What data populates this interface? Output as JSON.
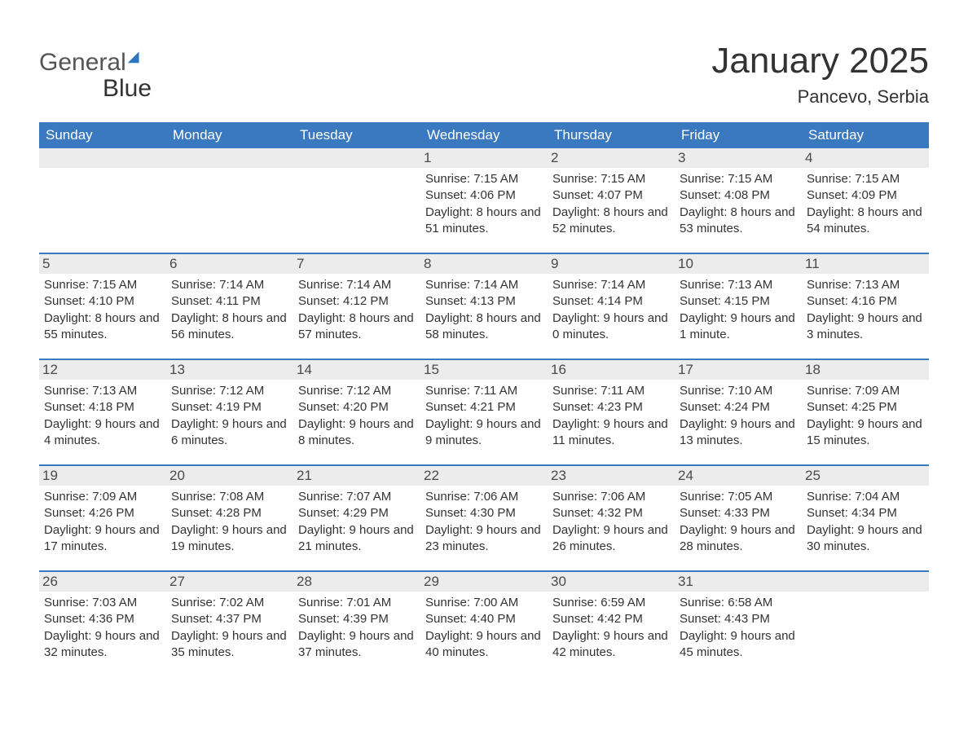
{
  "logo": {
    "part1": "General",
    "part2": "Blue"
  },
  "title": "January 2025",
  "location": "Pancevo, Serbia",
  "colors": {
    "header_bg": "#3a79bf",
    "header_text": "#ffffff",
    "daynum_bg": "#ececec",
    "border": "#3a79bf",
    "body_text": "#333333"
  },
  "dow": [
    "Sunday",
    "Monday",
    "Tuesday",
    "Wednesday",
    "Thursday",
    "Friday",
    "Saturday"
  ],
  "weeks": [
    [
      {
        "num": "",
        "sunrise": "",
        "sunset": "",
        "daylight": ""
      },
      {
        "num": "",
        "sunrise": "",
        "sunset": "",
        "daylight": ""
      },
      {
        "num": "",
        "sunrise": "",
        "sunset": "",
        "daylight": ""
      },
      {
        "num": "1",
        "sunrise": "Sunrise: 7:15 AM",
        "sunset": "Sunset: 4:06 PM",
        "daylight": "Daylight: 8 hours and 51 minutes."
      },
      {
        "num": "2",
        "sunrise": "Sunrise: 7:15 AM",
        "sunset": "Sunset: 4:07 PM",
        "daylight": "Daylight: 8 hours and 52 minutes."
      },
      {
        "num": "3",
        "sunrise": "Sunrise: 7:15 AM",
        "sunset": "Sunset: 4:08 PM",
        "daylight": "Daylight: 8 hours and 53 minutes."
      },
      {
        "num": "4",
        "sunrise": "Sunrise: 7:15 AM",
        "sunset": "Sunset: 4:09 PM",
        "daylight": "Daylight: 8 hours and 54 minutes."
      }
    ],
    [
      {
        "num": "5",
        "sunrise": "Sunrise: 7:15 AM",
        "sunset": "Sunset: 4:10 PM",
        "daylight": "Daylight: 8 hours and 55 minutes."
      },
      {
        "num": "6",
        "sunrise": "Sunrise: 7:14 AM",
        "sunset": "Sunset: 4:11 PM",
        "daylight": "Daylight: 8 hours and 56 minutes."
      },
      {
        "num": "7",
        "sunrise": "Sunrise: 7:14 AM",
        "sunset": "Sunset: 4:12 PM",
        "daylight": "Daylight: 8 hours and 57 minutes."
      },
      {
        "num": "8",
        "sunrise": "Sunrise: 7:14 AM",
        "sunset": "Sunset: 4:13 PM",
        "daylight": "Daylight: 8 hours and 58 minutes."
      },
      {
        "num": "9",
        "sunrise": "Sunrise: 7:14 AM",
        "sunset": "Sunset: 4:14 PM",
        "daylight": "Daylight: 9 hours and 0 minutes."
      },
      {
        "num": "10",
        "sunrise": "Sunrise: 7:13 AM",
        "sunset": "Sunset: 4:15 PM",
        "daylight": "Daylight: 9 hours and 1 minute."
      },
      {
        "num": "11",
        "sunrise": "Sunrise: 7:13 AM",
        "sunset": "Sunset: 4:16 PM",
        "daylight": "Daylight: 9 hours and 3 minutes."
      }
    ],
    [
      {
        "num": "12",
        "sunrise": "Sunrise: 7:13 AM",
        "sunset": "Sunset: 4:18 PM",
        "daylight": "Daylight: 9 hours and 4 minutes."
      },
      {
        "num": "13",
        "sunrise": "Sunrise: 7:12 AM",
        "sunset": "Sunset: 4:19 PM",
        "daylight": "Daylight: 9 hours and 6 minutes."
      },
      {
        "num": "14",
        "sunrise": "Sunrise: 7:12 AM",
        "sunset": "Sunset: 4:20 PM",
        "daylight": "Daylight: 9 hours and 8 minutes."
      },
      {
        "num": "15",
        "sunrise": "Sunrise: 7:11 AM",
        "sunset": "Sunset: 4:21 PM",
        "daylight": "Daylight: 9 hours and 9 minutes."
      },
      {
        "num": "16",
        "sunrise": "Sunrise: 7:11 AM",
        "sunset": "Sunset: 4:23 PM",
        "daylight": "Daylight: 9 hours and 11 minutes."
      },
      {
        "num": "17",
        "sunrise": "Sunrise: 7:10 AM",
        "sunset": "Sunset: 4:24 PM",
        "daylight": "Daylight: 9 hours and 13 minutes."
      },
      {
        "num": "18",
        "sunrise": "Sunrise: 7:09 AM",
        "sunset": "Sunset: 4:25 PM",
        "daylight": "Daylight: 9 hours and 15 minutes."
      }
    ],
    [
      {
        "num": "19",
        "sunrise": "Sunrise: 7:09 AM",
        "sunset": "Sunset: 4:26 PM",
        "daylight": "Daylight: 9 hours and 17 minutes."
      },
      {
        "num": "20",
        "sunrise": "Sunrise: 7:08 AM",
        "sunset": "Sunset: 4:28 PM",
        "daylight": "Daylight: 9 hours and 19 minutes."
      },
      {
        "num": "21",
        "sunrise": "Sunrise: 7:07 AM",
        "sunset": "Sunset: 4:29 PM",
        "daylight": "Daylight: 9 hours and 21 minutes."
      },
      {
        "num": "22",
        "sunrise": "Sunrise: 7:06 AM",
        "sunset": "Sunset: 4:30 PM",
        "daylight": "Daylight: 9 hours and 23 minutes."
      },
      {
        "num": "23",
        "sunrise": "Sunrise: 7:06 AM",
        "sunset": "Sunset: 4:32 PM",
        "daylight": "Daylight: 9 hours and 26 minutes."
      },
      {
        "num": "24",
        "sunrise": "Sunrise: 7:05 AM",
        "sunset": "Sunset: 4:33 PM",
        "daylight": "Daylight: 9 hours and 28 minutes."
      },
      {
        "num": "25",
        "sunrise": "Sunrise: 7:04 AM",
        "sunset": "Sunset: 4:34 PM",
        "daylight": "Daylight: 9 hours and 30 minutes."
      }
    ],
    [
      {
        "num": "26",
        "sunrise": "Sunrise: 7:03 AM",
        "sunset": "Sunset: 4:36 PM",
        "daylight": "Daylight: 9 hours and 32 minutes."
      },
      {
        "num": "27",
        "sunrise": "Sunrise: 7:02 AM",
        "sunset": "Sunset: 4:37 PM",
        "daylight": "Daylight: 9 hours and 35 minutes."
      },
      {
        "num": "28",
        "sunrise": "Sunrise: 7:01 AM",
        "sunset": "Sunset: 4:39 PM",
        "daylight": "Daylight: 9 hours and 37 minutes."
      },
      {
        "num": "29",
        "sunrise": "Sunrise: 7:00 AM",
        "sunset": "Sunset: 4:40 PM",
        "daylight": "Daylight: 9 hours and 40 minutes."
      },
      {
        "num": "30",
        "sunrise": "Sunrise: 6:59 AM",
        "sunset": "Sunset: 4:42 PM",
        "daylight": "Daylight: 9 hours and 42 minutes."
      },
      {
        "num": "31",
        "sunrise": "Sunrise: 6:58 AM",
        "sunset": "Sunset: 4:43 PM",
        "daylight": "Daylight: 9 hours and 45 minutes."
      },
      {
        "num": "",
        "sunrise": "",
        "sunset": "",
        "daylight": ""
      }
    ]
  ]
}
